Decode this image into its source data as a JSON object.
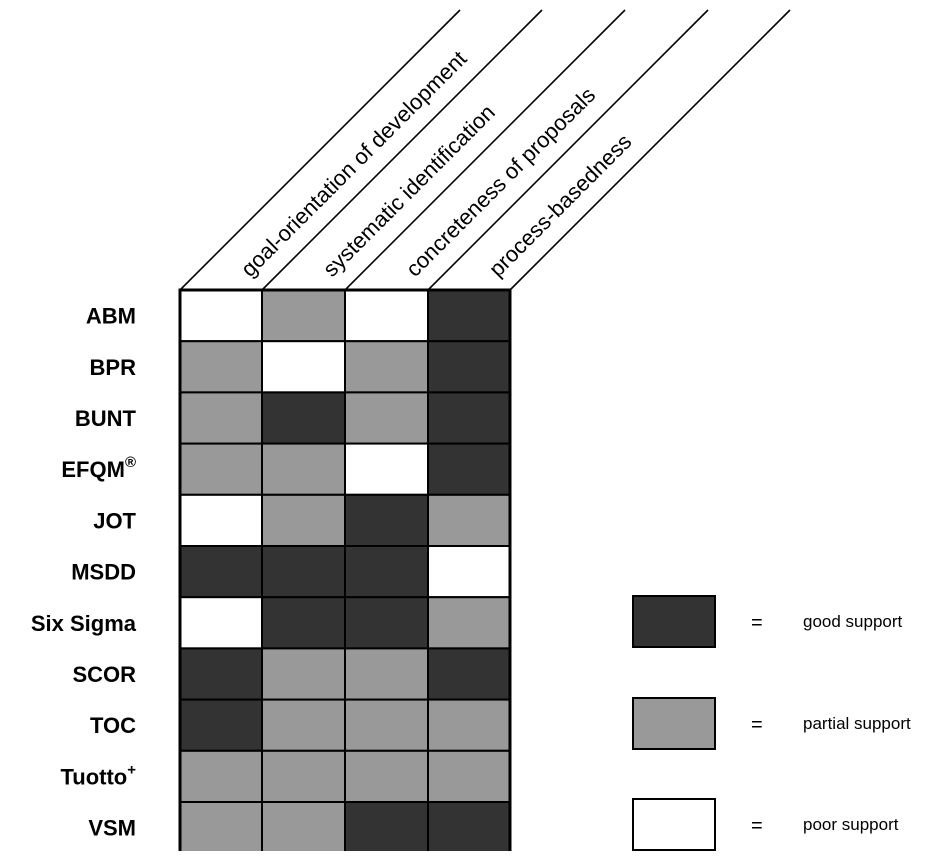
{
  "matrix": {
    "columns": [
      "goal-orientation of development",
      "systematic identification",
      "concreteness of proposals",
      "process-basedness"
    ],
    "rows": [
      {
        "label": "ABM",
        "sup": "",
        "cells": [
          "poor",
          "partial",
          "poor",
          "good"
        ]
      },
      {
        "label": "BPR",
        "sup": "",
        "cells": [
          "partial",
          "poor",
          "partial",
          "good"
        ]
      },
      {
        "label": "BUNT",
        "sup": "",
        "cells": [
          "partial",
          "good",
          "partial",
          "good"
        ]
      },
      {
        "label": "EFQM",
        "sup": "®",
        "cells": [
          "partial",
          "partial",
          "poor",
          "good"
        ]
      },
      {
        "label": "JOT",
        "sup": "",
        "cells": [
          "poor",
          "partial",
          "good",
          "partial"
        ]
      },
      {
        "label": "MSDD",
        "sup": "",
        "cells": [
          "good",
          "good",
          "good",
          "poor"
        ]
      },
      {
        "label": "Six Sigma",
        "sup": "",
        "cells": [
          "poor",
          "good",
          "good",
          "partial"
        ]
      },
      {
        "label": "SCOR",
        "sup": "",
        "cells": [
          "good",
          "partial",
          "partial",
          "good"
        ]
      },
      {
        "label": "TOC",
        "sup": "",
        "cells": [
          "good",
          "partial",
          "partial",
          "partial"
        ]
      },
      {
        "label": "Tuotto",
        "sup": "+",
        "cells": [
          "partial",
          "partial",
          "partial",
          "partial"
        ]
      },
      {
        "label": "VSM",
        "sup": "",
        "cells": [
          "partial",
          "partial",
          "good",
          "good"
        ]
      }
    ]
  },
  "legend": [
    {
      "level": "good",
      "eq": "=",
      "label": "good support"
    },
    {
      "level": "partial",
      "eq": "=",
      "label": "partial support"
    },
    {
      "level": "poor",
      "eq": "=",
      "label": "poor support"
    }
  ],
  "colors": {
    "good": "#333333",
    "partial": "#999999",
    "poor": "#ffffff",
    "stroke": "#000000"
  }
}
